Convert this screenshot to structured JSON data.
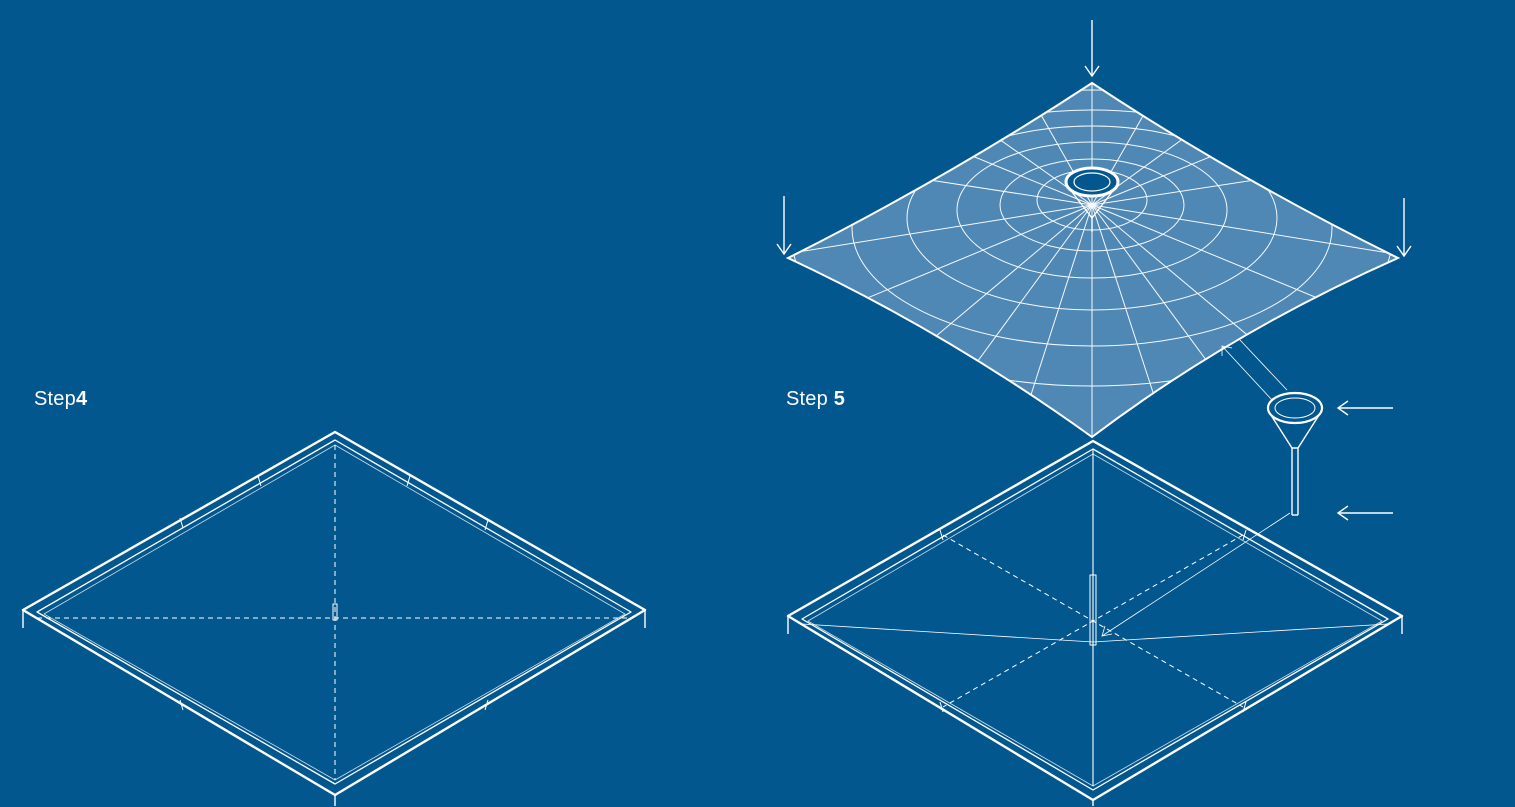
{
  "colors": {
    "background": "#03578f",
    "line": "#ffffff",
    "membrane_fill": "#4f88b4"
  },
  "steps": [
    {
      "word": "Step",
      "number": "4"
    },
    {
      "word": "Step ",
      "number": "5"
    }
  ],
  "icons": [
    "down-arrow-icon",
    "left-arrow-icon"
  ]
}
